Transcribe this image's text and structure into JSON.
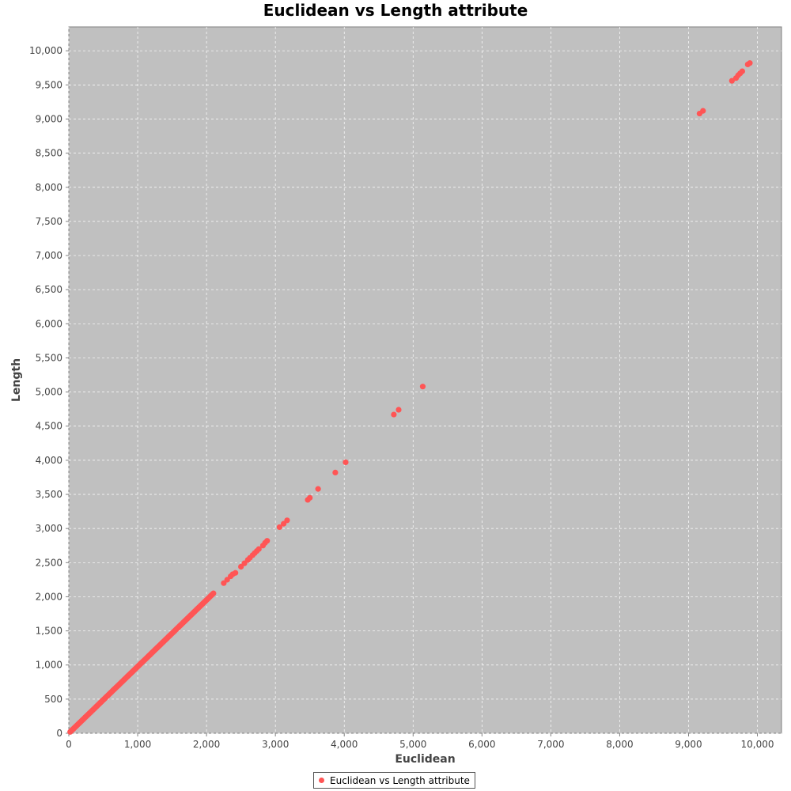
{
  "chart_data": {
    "type": "scatter",
    "title": "Euclidean vs Length attribute",
    "xlabel": "Euclidean",
    "ylabel": "Length",
    "xlim": [
      0,
      10350
    ],
    "ylim": [
      0,
      10350
    ],
    "x_ticks": [
      0,
      1000,
      2000,
      3000,
      4000,
      5000,
      6000,
      7000,
      8000,
      9000,
      10000
    ],
    "x_tick_labels": [
      "0",
      "1,000",
      "2,000",
      "3,000",
      "4,000",
      "5,000",
      "6,000",
      "7,000",
      "8,000",
      "9,000",
      "10,000"
    ],
    "y_ticks": [
      0,
      500,
      1000,
      1500,
      2000,
      2500,
      3000,
      3500,
      4000,
      4500,
      5000,
      5500,
      6000,
      6500,
      7000,
      7500,
      8000,
      8500,
      9000,
      9500,
      10000
    ],
    "y_tick_labels": [
      "0",
      "500",
      "1,000",
      "1,500",
      "2,000",
      "2,500",
      "3,000",
      "3,500",
      "4,000",
      "4,500",
      "5,000",
      "5,500",
      "6,000",
      "6,500",
      "7,000",
      "7,500",
      "8,000",
      "8,500",
      "9,000",
      "9,500",
      "10,000"
    ],
    "grid": true,
    "legend_position": "bottom",
    "series": [
      {
        "name": "Euclidean vs Length attribute",
        "color": "#ff5555",
        "dense_segment": {
          "x": [
            20,
            2100
          ],
          "y": [
            20,
            2050
          ]
        },
        "points": [
          [
            2250,
            2200
          ],
          [
            2300,
            2250
          ],
          [
            2350,
            2300
          ],
          [
            2380,
            2330
          ],
          [
            2420,
            2350
          ],
          [
            2500,
            2440
          ],
          [
            2550,
            2490
          ],
          [
            2600,
            2540
          ],
          [
            2630,
            2570
          ],
          [
            2670,
            2610
          ],
          [
            2700,
            2640
          ],
          [
            2730,
            2670
          ],
          [
            2760,
            2700
          ],
          [
            2820,
            2750
          ],
          [
            2850,
            2790
          ],
          [
            2880,
            2820
          ],
          [
            3060,
            3020
          ],
          [
            3120,
            3070
          ],
          [
            3170,
            3120
          ],
          [
            3470,
            3420
          ],
          [
            3500,
            3450
          ],
          [
            3620,
            3580
          ],
          [
            3870,
            3820
          ],
          [
            4020,
            3970
          ],
          [
            4720,
            4670
          ],
          [
            4790,
            4740
          ],
          [
            5140,
            5080
          ],
          [
            9160,
            9080
          ],
          [
            9210,
            9120
          ],
          [
            9630,
            9560
          ],
          [
            9690,
            9600
          ],
          [
            9720,
            9640
          ],
          [
            9750,
            9670
          ],
          [
            9780,
            9700
          ],
          [
            9860,
            9800
          ],
          [
            9890,
            9820
          ]
        ]
      }
    ]
  }
}
